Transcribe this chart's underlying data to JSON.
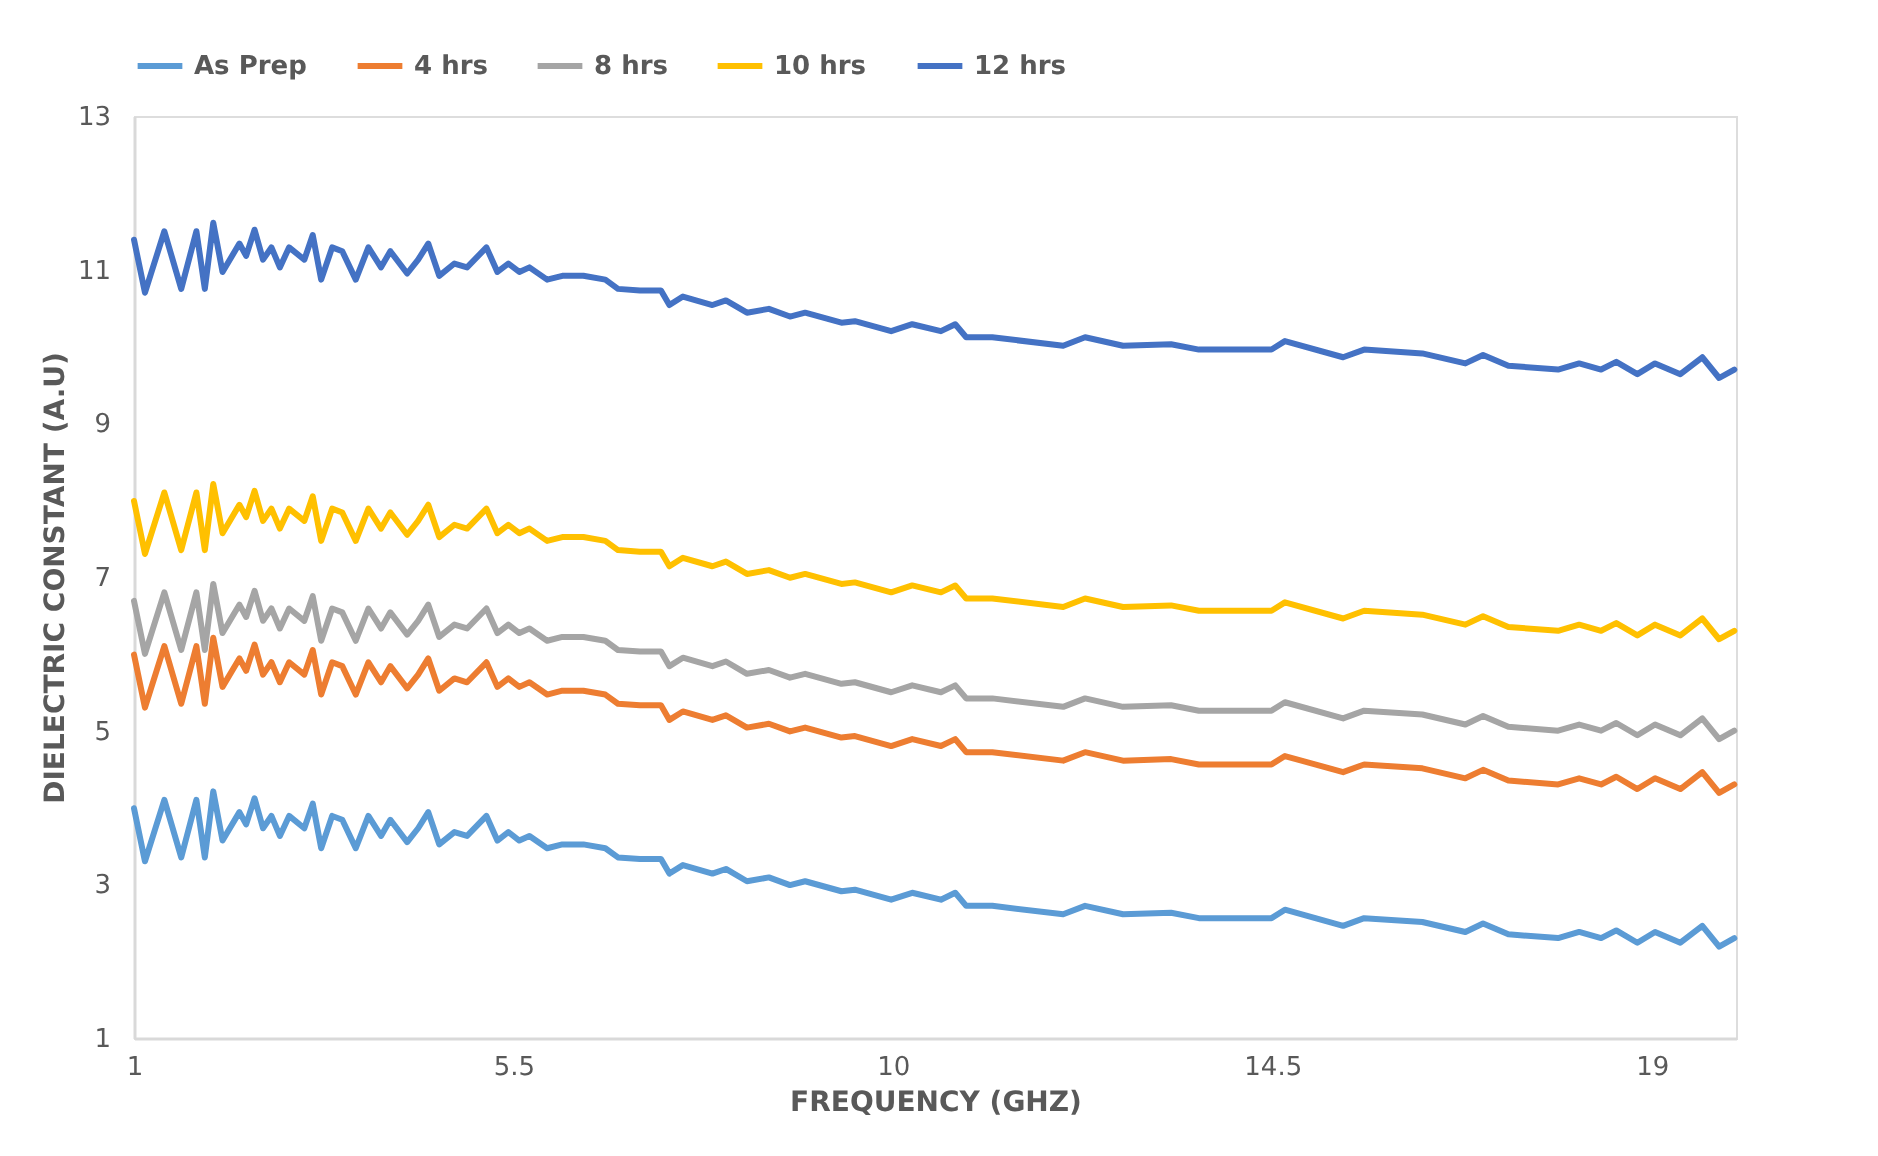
{
  "chart_data": {
    "type": "line",
    "xlabel": "FREQUENCY (GHZ)",
    "ylabel": "DIELECTRIC CONSTANT (A.U)",
    "xlim": [
      1,
      20
    ],
    "xticks": [
      1,
      5.5,
      10,
      14.5,
      19
    ],
    "ylim": [
      1,
      13
    ],
    "yticks": [
      1,
      3,
      5,
      7,
      9,
      11,
      13
    ],
    "grid": false,
    "legend": "top",
    "marker": "none",
    "line_style": "solid",
    "x": [
      1.0,
      1.13,
      1.36,
      1.56,
      1.74,
      1.84,
      1.94,
      2.05,
      2.25,
      2.33,
      2.43,
      2.53,
      2.63,
      2.73,
      2.84,
      3.02,
      3.12,
      3.22,
      3.35,
      3.47,
      3.63,
      3.78,
      3.93,
      4.04,
      4.24,
      4.37,
      4.49,
      4.62,
      4.8,
      4.95,
      5.18,
      5.31,
      5.44,
      5.57,
      5.69,
      5.9,
      6.08,
      6.33,
      6.59,
      6.74,
      7.0,
      7.25,
      7.35,
      7.51,
      7.86,
      8.02,
      8.27,
      8.53,
      8.78,
      8.96,
      9.39,
      9.55,
      9.98,
      10.23,
      10.57,
      10.74,
      10.87,
      11.18,
      12.02,
      12.28,
      12.73,
      13.3,
      13.63,
      14.49,
      14.65,
      15.34,
      15.59,
      16.28,
      16.79,
      17.0,
      17.3,
      17.89,
      18.14,
      18.4,
      18.58,
      18.83,
      19.04,
      19.34,
      19.6,
      19.8,
      19.98
    ],
    "series": [
      {
        "name": "As Prep",
        "color": "#5b9bd5",
        "values": [
          3.99,
          3.3,
          4.1,
          3.35,
          4.1,
          3.35,
          4.21,
          3.57,
          3.94,
          3.78,
          4.12,
          3.73,
          3.89,
          3.63,
          3.89,
          3.73,
          4.05,
          3.47,
          3.89,
          3.84,
          3.47,
          3.89,
          3.63,
          3.84,
          3.55,
          3.73,
          3.94,
          3.52,
          3.68,
          3.63,
          3.89,
          3.57,
          3.68,
          3.57,
          3.63,
          3.47,
          3.52,
          3.52,
          3.47,
          3.35,
          3.33,
          3.33,
          3.14,
          3.25,
          3.14,
          3.2,
          3.04,
          3.09,
          2.99,
          3.04,
          2.91,
          2.93,
          2.8,
          2.89,
          2.8,
          2.89,
          2.72,
          2.72,
          2.61,
          2.72,
          2.61,
          2.63,
          2.56,
          2.56,
          2.67,
          2.46,
          2.56,
          2.51,
          2.38,
          2.49,
          2.35,
          2.3,
          2.38,
          2.3,
          2.4,
          2.24,
          2.38,
          2.24,
          2.46,
          2.19,
          2.3
        ]
      },
      {
        "name": "4 hrs",
        "color": "#ed7d31",
        "values": [
          5.99,
          5.3,
          6.1,
          5.35,
          6.1,
          5.35,
          6.21,
          5.57,
          5.94,
          5.78,
          6.12,
          5.73,
          5.89,
          5.63,
          5.89,
          5.73,
          6.05,
          5.47,
          5.89,
          5.84,
          5.47,
          5.89,
          5.63,
          5.84,
          5.55,
          5.73,
          5.94,
          5.52,
          5.68,
          5.63,
          5.89,
          5.57,
          5.68,
          5.57,
          5.63,
          5.47,
          5.52,
          5.52,
          5.47,
          5.35,
          5.33,
          5.33,
          5.14,
          5.25,
          5.14,
          5.2,
          5.04,
          5.09,
          4.99,
          5.04,
          4.91,
          4.93,
          4.8,
          4.89,
          4.8,
          4.89,
          4.72,
          4.72,
          4.61,
          4.72,
          4.61,
          4.63,
          4.56,
          4.56,
          4.67,
          4.46,
          4.56,
          4.51,
          4.38,
          4.49,
          4.35,
          4.3,
          4.38,
          4.3,
          4.4,
          4.24,
          4.38,
          4.24,
          4.46,
          4.19,
          4.3
        ]
      },
      {
        "name": "8 hrs",
        "color": "#a5a5a5",
        "values": [
          6.69,
          6.0,
          6.8,
          6.05,
          6.8,
          6.05,
          6.91,
          6.27,
          6.64,
          6.48,
          6.82,
          6.43,
          6.59,
          6.33,
          6.59,
          6.43,
          6.75,
          6.17,
          6.59,
          6.54,
          6.17,
          6.59,
          6.33,
          6.54,
          6.25,
          6.43,
          6.64,
          6.22,
          6.38,
          6.33,
          6.59,
          6.27,
          6.38,
          6.27,
          6.33,
          6.17,
          6.22,
          6.22,
          6.17,
          6.05,
          6.03,
          6.03,
          5.84,
          5.95,
          5.84,
          5.9,
          5.74,
          5.79,
          5.69,
          5.74,
          5.61,
          5.63,
          5.5,
          5.59,
          5.5,
          5.59,
          5.42,
          5.42,
          5.31,
          5.42,
          5.31,
          5.33,
          5.26,
          5.26,
          5.37,
          5.16,
          5.26,
          5.21,
          5.08,
          5.19,
          5.05,
          5.0,
          5.08,
          5.0,
          5.1,
          4.94,
          5.08,
          4.94,
          5.16,
          4.89,
          5.0
        ]
      },
      {
        "name": "10 hrs",
        "color": "#ffc000",
        "values": [
          7.99,
          7.3,
          8.1,
          7.35,
          8.1,
          7.35,
          8.21,
          7.57,
          7.94,
          7.78,
          8.12,
          7.73,
          7.89,
          7.63,
          7.89,
          7.73,
          8.05,
          7.47,
          7.89,
          7.84,
          7.47,
          7.89,
          7.63,
          7.84,
          7.55,
          7.73,
          7.94,
          7.52,
          7.68,
          7.63,
          7.89,
          7.57,
          7.68,
          7.57,
          7.63,
          7.47,
          7.52,
          7.52,
          7.47,
          7.35,
          7.33,
          7.33,
          7.14,
          7.25,
          7.14,
          7.2,
          7.04,
          7.09,
          6.99,
          7.04,
          6.91,
          6.93,
          6.8,
          6.89,
          6.8,
          6.89,
          6.72,
          6.72,
          6.61,
          6.72,
          6.61,
          6.63,
          6.56,
          6.56,
          6.67,
          6.46,
          6.56,
          6.51,
          6.38,
          6.49,
          6.35,
          6.3,
          6.38,
          6.3,
          6.4,
          6.24,
          6.38,
          6.24,
          6.46,
          6.19,
          6.3
        ]
      },
      {
        "name": "12 hrs",
        "color": "#4472c4",
        "values": [
          11.39,
          10.7,
          11.5,
          10.75,
          11.5,
          10.75,
          11.61,
          10.97,
          11.34,
          11.18,
          11.52,
          11.13,
          11.29,
          11.03,
          11.29,
          11.13,
          11.45,
          10.87,
          11.29,
          11.24,
          10.87,
          11.29,
          11.03,
          11.24,
          10.95,
          11.13,
          11.34,
          10.92,
          11.08,
          11.03,
          11.29,
          10.97,
          11.08,
          10.97,
          11.03,
          10.87,
          10.92,
          10.92,
          10.87,
          10.75,
          10.73,
          10.73,
          10.54,
          10.65,
          10.54,
          10.6,
          10.44,
          10.49,
          10.39,
          10.44,
          10.31,
          10.33,
          10.2,
          10.29,
          10.2,
          10.29,
          10.12,
          10.12,
          10.01,
          10.12,
          10.01,
          10.03,
          9.96,
          9.96,
          10.07,
          9.86,
          9.96,
          9.91,
          9.78,
          9.89,
          9.75,
          9.7,
          9.78,
          9.7,
          9.8,
          9.64,
          9.78,
          9.64,
          9.86,
          9.59,
          9.7
        ]
      }
    ]
  }
}
